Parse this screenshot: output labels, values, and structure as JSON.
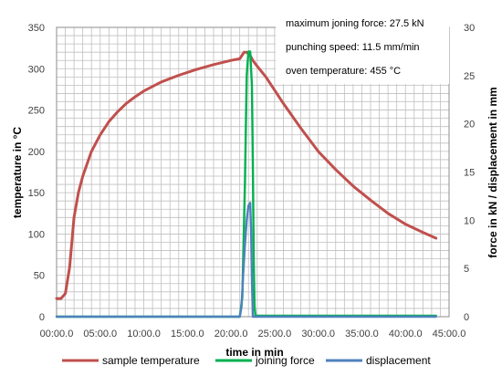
{
  "chart_data": {
    "type": "line",
    "xlabel": "time in min",
    "ylabel_left": "temperature in °C",
    "ylabel_right": "force in kN / displacement in mm",
    "x_tick_labels": [
      "00:00.0",
      "05:00.0",
      "10:00.0",
      "15:00.0",
      "20:00.0",
      "25:00.0",
      "30:00.0",
      "35:00.0",
      "40:00.0",
      "45:00.0"
    ],
    "xlim": [
      0,
      45
    ],
    "ylim_left": [
      0,
      350
    ],
    "ylim_right": [
      0,
      30
    ],
    "y_ticks_left": [
      0,
      50,
      100,
      150,
      200,
      250,
      300,
      350
    ],
    "y_ticks_right": [
      0,
      5,
      10,
      15,
      20,
      25,
      30
    ],
    "grid": true,
    "legend_position": "bottom",
    "annotations": [
      "maximum joning force: 27.5 kN",
      "punching speed: 11.5 mm/min",
      "oven temperature: 455 °C"
    ],
    "series": [
      {
        "name": "sample temperature",
        "axis": "left",
        "color": "#c0504d",
        "x": [
          0,
          0.5,
          1.0,
          1.5,
          2,
          2.5,
          3,
          4,
          5,
          6,
          7,
          8,
          9,
          10,
          12,
          14,
          16,
          18,
          20,
          21,
          21.5,
          21.8,
          22.2,
          22.5,
          23,
          24,
          25,
          26,
          28,
          30,
          32,
          34,
          36,
          38,
          40,
          42,
          43.5
        ],
        "y": [
          22,
          22,
          28,
          60,
          120,
          150,
          170,
          200,
          220,
          236,
          248,
          258,
          266,
          273,
          284,
          292,
          299,
          305,
          310,
          312,
          320,
          320,
          316,
          310,
          303,
          290,
          274,
          258,
          228,
          200,
          178,
          158,
          141,
          125,
          112,
          102,
          95
        ]
      },
      {
        "name": "joining force",
        "axis": "right",
        "color": "#00b050",
        "x": [
          0,
          21,
          21.3,
          21.6,
          21.8,
          22.0,
          22.2,
          22.4,
          22.5,
          22.6,
          22.7,
          22.8,
          43.5
        ],
        "y": [
          0,
          0,
          2,
          14,
          25,
          27.5,
          27.5,
          24,
          16,
          6,
          1,
          0.1,
          0.1
        ]
      },
      {
        "name": "displacement",
        "axis": "right",
        "color": "#4f81bd",
        "x": [
          0,
          21,
          21.2,
          21.4,
          21.6,
          21.8,
          22.0,
          22.2,
          22.3,
          22.4,
          22.5,
          43.5
        ],
        "y": [
          0,
          0,
          1,
          4.5,
          7.5,
          10,
          11.5,
          11.8,
          9,
          4,
          0,
          0
        ]
      }
    ]
  }
}
